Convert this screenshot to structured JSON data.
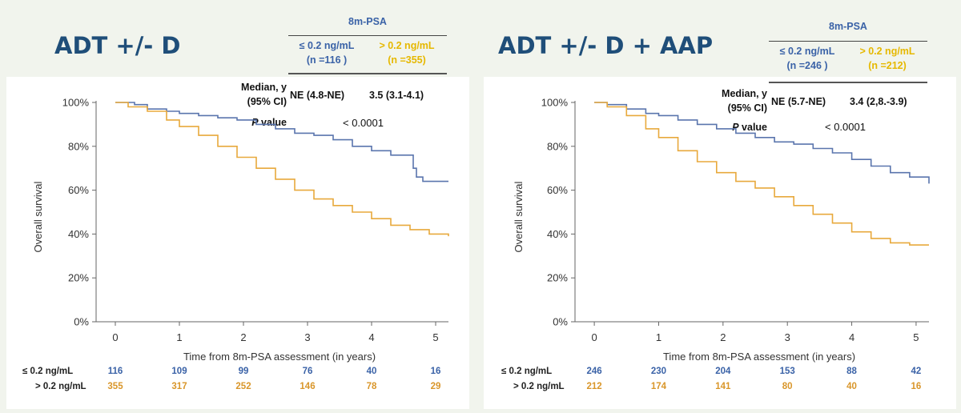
{
  "colors": {
    "low_psa": "#5a75ad",
    "high_psa": "#e8a93c",
    "title": "#1f4e79"
  },
  "chart_data": [
    {
      "type": "line",
      "title": "ADT +/- D",
      "header": {
        "psa_label": "8m-PSA",
        "group1": {
          "label": "≤ 0.2 ng/mL",
          "n": "(n =116 )"
        },
        "group2": {
          "label": "> 0.2 ng/mL",
          "n": "(n =355)"
        }
      },
      "stats": {
        "median_label_1": "Median, y",
        "median_label_2": "(95% CI)",
        "median_group1": "NE (4.8-NE)",
        "median_group2": "3.5 (3.1-4.1)",
        "p_label_italic": "P",
        "p_label_rest": " value",
        "p_value": "< 0.0001"
      },
      "xlabel": "Time from 8m-PSA assessment (in years)",
      "ylabel": "Overall survival",
      "xlim": [
        -0.3,
        5.2
      ],
      "ylim": [
        0,
        100
      ],
      "x_ticks": [
        "0",
        "1",
        "2",
        "3",
        "4",
        "5"
      ],
      "y_ticks": [
        "0%",
        "20%",
        "40%",
        "60%",
        "80%",
        "100%"
      ],
      "series": [
        {
          "name": "≤ 0.2 ng/mL",
          "x": [
            0,
            0.3,
            0.5,
            0.8,
            1.0,
            1.3,
            1.6,
            1.9,
            2.2,
            2.5,
            2.8,
            3.1,
            3.4,
            3.7,
            4.0,
            4.3,
            4.55,
            4.65,
            4.7,
            4.8,
            5.2
          ],
          "y": [
            100,
            99,
            97,
            96,
            95,
            94,
            93,
            92,
            90,
            88,
            86,
            85,
            83,
            80,
            78,
            76,
            76,
            70,
            66,
            64,
            64
          ]
        },
        {
          "name": "> 0.2 ng/mL",
          "x": [
            0,
            0.2,
            0.5,
            0.8,
            1.0,
            1.3,
            1.6,
            1.9,
            2.2,
            2.5,
            2.8,
            3.1,
            3.4,
            3.7,
            4.0,
            4.3,
            4.6,
            4.9,
            5.2
          ],
          "y": [
            100,
            98,
            96,
            92,
            89,
            85,
            80,
            75,
            70,
            65,
            60,
            56,
            53,
            50,
            47,
            44,
            42,
            40,
            39
          ]
        }
      ],
      "at_risk": {
        "group1_label": "≤ 0.2 ng/mL",
        "group2_label": "> 0.2 ng/mL",
        "group1": [
          "116",
          "109",
          "99",
          "76",
          "40",
          "16"
        ],
        "group2": [
          "355",
          "317",
          "252",
          "146",
          "78",
          "29"
        ]
      }
    },
    {
      "type": "line",
      "title": "ADT +/- D + AAP",
      "header": {
        "psa_label": "8m-PSA",
        "group1": {
          "label": "≤ 0.2 ng/mL",
          "n": "(n =246 )"
        },
        "group2": {
          "label": "> 0.2 ng/mL",
          "n": "(n =212)"
        }
      },
      "stats": {
        "median_label_1": "Median, y",
        "median_label_2": "(95% CI)",
        "median_group1": "NE (5.7-NE)",
        "median_group2": "3.4 (2,8.-3.9)",
        "p_label_italic": "P",
        "p_label_rest": " value",
        "p_value": "< 0.0001"
      },
      "xlabel": "Time from 8m-PSA assessment (in years)",
      "ylabel": "Overall survival",
      "xlim": [
        -0.3,
        5.2
      ],
      "ylim": [
        0,
        100
      ],
      "x_ticks": [
        "0",
        "1",
        "2",
        "3",
        "4",
        "5"
      ],
      "y_ticks": [
        "0%",
        "20%",
        "40%",
        "60%",
        "80%",
        "100%"
      ],
      "series": [
        {
          "name": "≤ 0.2 ng/mL",
          "x": [
            0,
            0.2,
            0.5,
            0.8,
            1.0,
            1.3,
            1.6,
            1.9,
            2.2,
            2.5,
            2.8,
            3.1,
            3.4,
            3.7,
            4.0,
            4.3,
            4.6,
            4.9,
            5.2
          ],
          "y": [
            100,
            99,
            97,
            95,
            94,
            92,
            90,
            88,
            86,
            84,
            82,
            81,
            79,
            77,
            74,
            71,
            68,
            66,
            63
          ]
        },
        {
          "name": "> 0.2 ng/mL",
          "x": [
            0,
            0.2,
            0.5,
            0.8,
            1.0,
            1.3,
            1.6,
            1.9,
            2.2,
            2.5,
            2.8,
            3.1,
            3.4,
            3.7,
            4.0,
            4.3,
            4.6,
            4.9,
            5.2
          ],
          "y": [
            100,
            98,
            94,
            88,
            84,
            78,
            73,
            68,
            64,
            61,
            57,
            53,
            49,
            45,
            41,
            38,
            36,
            35,
            35
          ]
        }
      ],
      "at_risk": {
        "group1_label": "≤ 0.2 ng/mL",
        "group2_label": "> 0.2 ng/mL",
        "group1": [
          "246",
          "230",
          "204",
          "153",
          "88",
          "42"
        ],
        "group2": [
          "212",
          "174",
          "141",
          "80",
          "40",
          "16"
        ]
      }
    }
  ]
}
